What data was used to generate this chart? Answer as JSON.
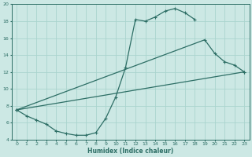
{
  "xlabel": "Humidex (Indice chaleur)",
  "bg_color": "#cce8e4",
  "grid_color": "#aad4ce",
  "line_color": "#2d6e65",
  "spine_color": "#2d6e65",
  "xlim": [
    -0.5,
    23.5
  ],
  "ylim": [
    4,
    20
  ],
  "xticks": [
    0,
    1,
    2,
    3,
    4,
    5,
    6,
    7,
    8,
    9,
    10,
    11,
    12,
    13,
    14,
    15,
    16,
    17,
    18,
    19,
    20,
    21,
    22,
    23
  ],
  "yticks": [
    4,
    6,
    8,
    10,
    12,
    14,
    16,
    18,
    20
  ],
  "line1_x": [
    0,
    1,
    2,
    3,
    4,
    5,
    6,
    7,
    8,
    9,
    10,
    11,
    12,
    13,
    14,
    15,
    16,
    17,
    18
  ],
  "line1_y": [
    7.5,
    6.8,
    6.3,
    5.8,
    5.0,
    4.7,
    4.5,
    4.5,
    4.8,
    6.5,
    9.0,
    12.5,
    18.2,
    18.0,
    18.5,
    19.2,
    19.5,
    19.0,
    18.2
  ],
  "line2_x": [
    0,
    19,
    20,
    21,
    22,
    23
  ],
  "line2_y": [
    7.5,
    15.8,
    14.2,
    13.2,
    12.8,
    12.0
  ],
  "line3_x": [
    0,
    23
  ],
  "line3_y": [
    7.5,
    12.0
  ]
}
